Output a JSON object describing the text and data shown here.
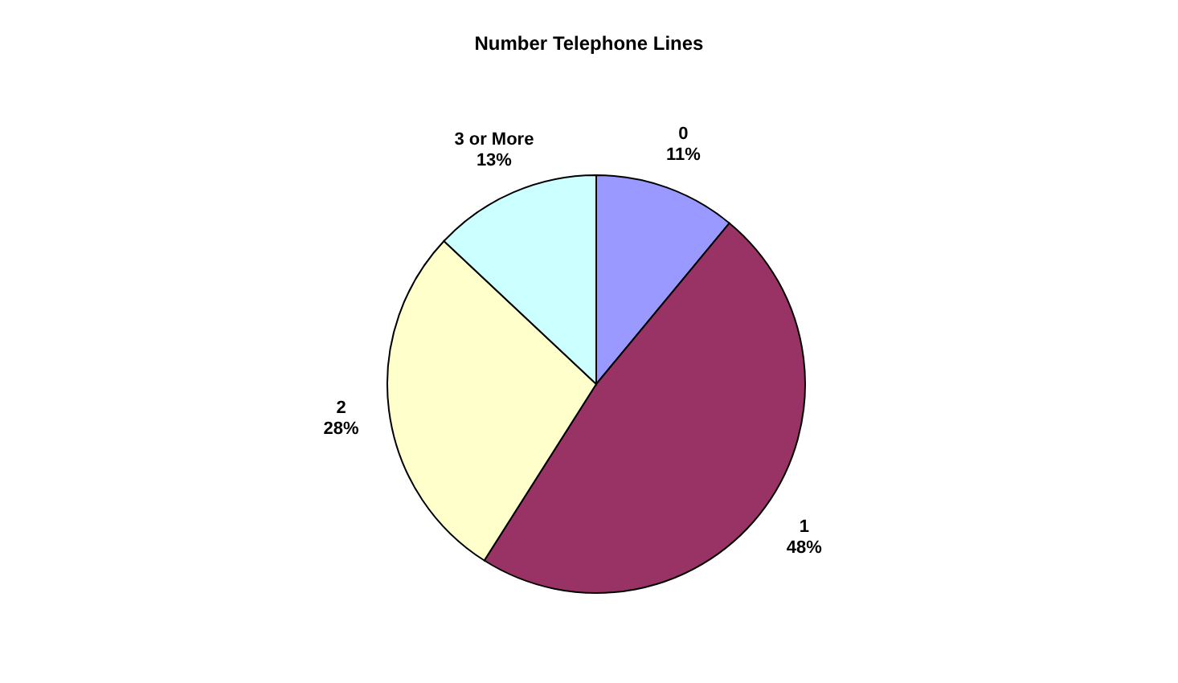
{
  "chart_data": {
    "type": "pie",
    "title": "Number Telephone Lines",
    "categories": [
      "0",
      "1",
      "2",
      "3 or More"
    ],
    "values": [
      11,
      48,
      28,
      13
    ],
    "colors": [
      "#9999ff",
      "#993366",
      "#ffffcc",
      "#ccffff"
    ],
    "value_labels": [
      "11%",
      "48%",
      "28%",
      "13%"
    ],
    "legend": false
  }
}
